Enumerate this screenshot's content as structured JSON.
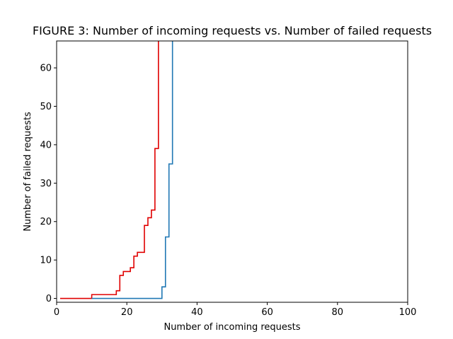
{
  "chart_data": {
    "type": "line",
    "drawstyle": "steps-post",
    "title": "FIGURE 3: Number of incoming requests vs. Number of failed requests",
    "xlabel": "Number of incoming requests",
    "ylabel": "Number of failed requests",
    "xlim": [
      0,
      100
    ],
    "ylim": [
      -1,
      67
    ],
    "xticks": [
      0,
      20,
      40,
      60,
      80,
      100
    ],
    "yticks": [
      0,
      10,
      20,
      30,
      40,
      50,
      60
    ],
    "xtick_labels": [
      "0",
      "20",
      "40",
      "60",
      "80",
      "100"
    ],
    "ytick_labels": [
      "0",
      "10",
      "20",
      "30",
      "40",
      "50",
      "60"
    ],
    "grid": false,
    "legend": "none",
    "series": [
      {
        "color": "#e00000",
        "x": [
          1,
          10,
          17,
          18,
          19,
          21,
          22,
          23,
          25,
          26,
          27,
          28,
          29
        ],
        "y": [
          0,
          1,
          2,
          6,
          7,
          8,
          11,
          12,
          19,
          21,
          23,
          39,
          70
        ]
      },
      {
        "color": "#1f77b4",
        "x": [
          10,
          30,
          31,
          32,
          33
        ],
        "y": [
          0,
          3,
          16,
          35,
          70
        ]
      }
    ]
  }
}
